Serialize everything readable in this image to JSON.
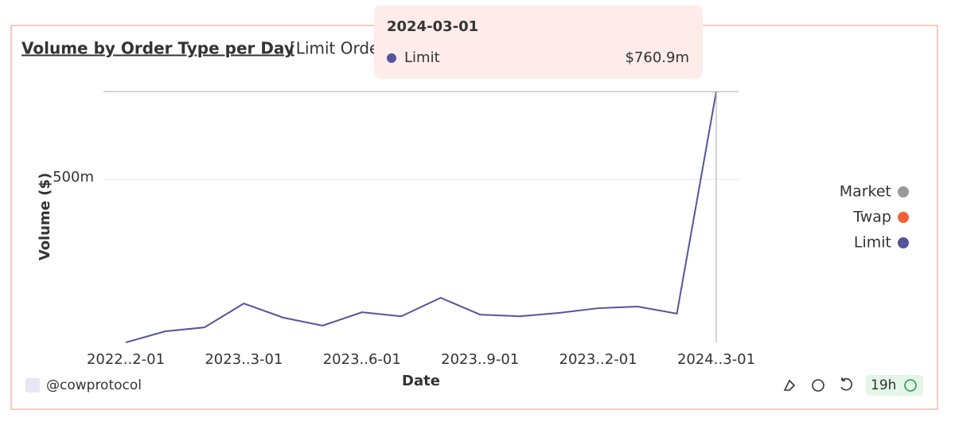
{
  "chart_data": {
    "type": "line",
    "title": "Volume by Order Type per Day",
    "subtitle": "[Limit Orders]",
    "y_label": "Volume ($)",
    "x_label": "Date",
    "categories": [
      "2022..2-01",
      null,
      null,
      "2023..3-01",
      null,
      null,
      "2023..6-01",
      null,
      null,
      "2023..9-01",
      null,
      null,
      "2023..2-01",
      null,
      null,
      "2024..3-01"
    ],
    "series": [
      {
        "name": "Market",
        "color": "#999999",
        "hidden": true
      },
      {
        "name": "Twap",
        "color": "#f0613a",
        "hidden": true
      },
      {
        "name": "Limit",
        "color": "#55559b",
        "values": [
          14000000,
          47000000,
          59000000,
          130000000,
          88000000,
          64000000,
          104000000,
          92000000,
          147000000,
          97000000,
          92000000,
          102000000,
          116000000,
          121000000,
          100000000,
          760900000
        ],
        "value_labels": [
          null,
          null,
          null,
          null,
          null,
          null,
          null,
          null,
          null,
          null,
          null,
          null,
          null,
          null,
          null,
          "$760.9m"
        ]
      }
    ],
    "ylim": [
      0,
      760900000
    ],
    "yticks": [
      {
        "value": 500000000,
        "label": "500m"
      }
    ],
    "grid": true,
    "tooltip": {
      "date": "2024-03-01",
      "index": 15,
      "series": 2
    },
    "footer": {
      "handle": "@cowprotocol",
      "age": "19h"
    }
  }
}
